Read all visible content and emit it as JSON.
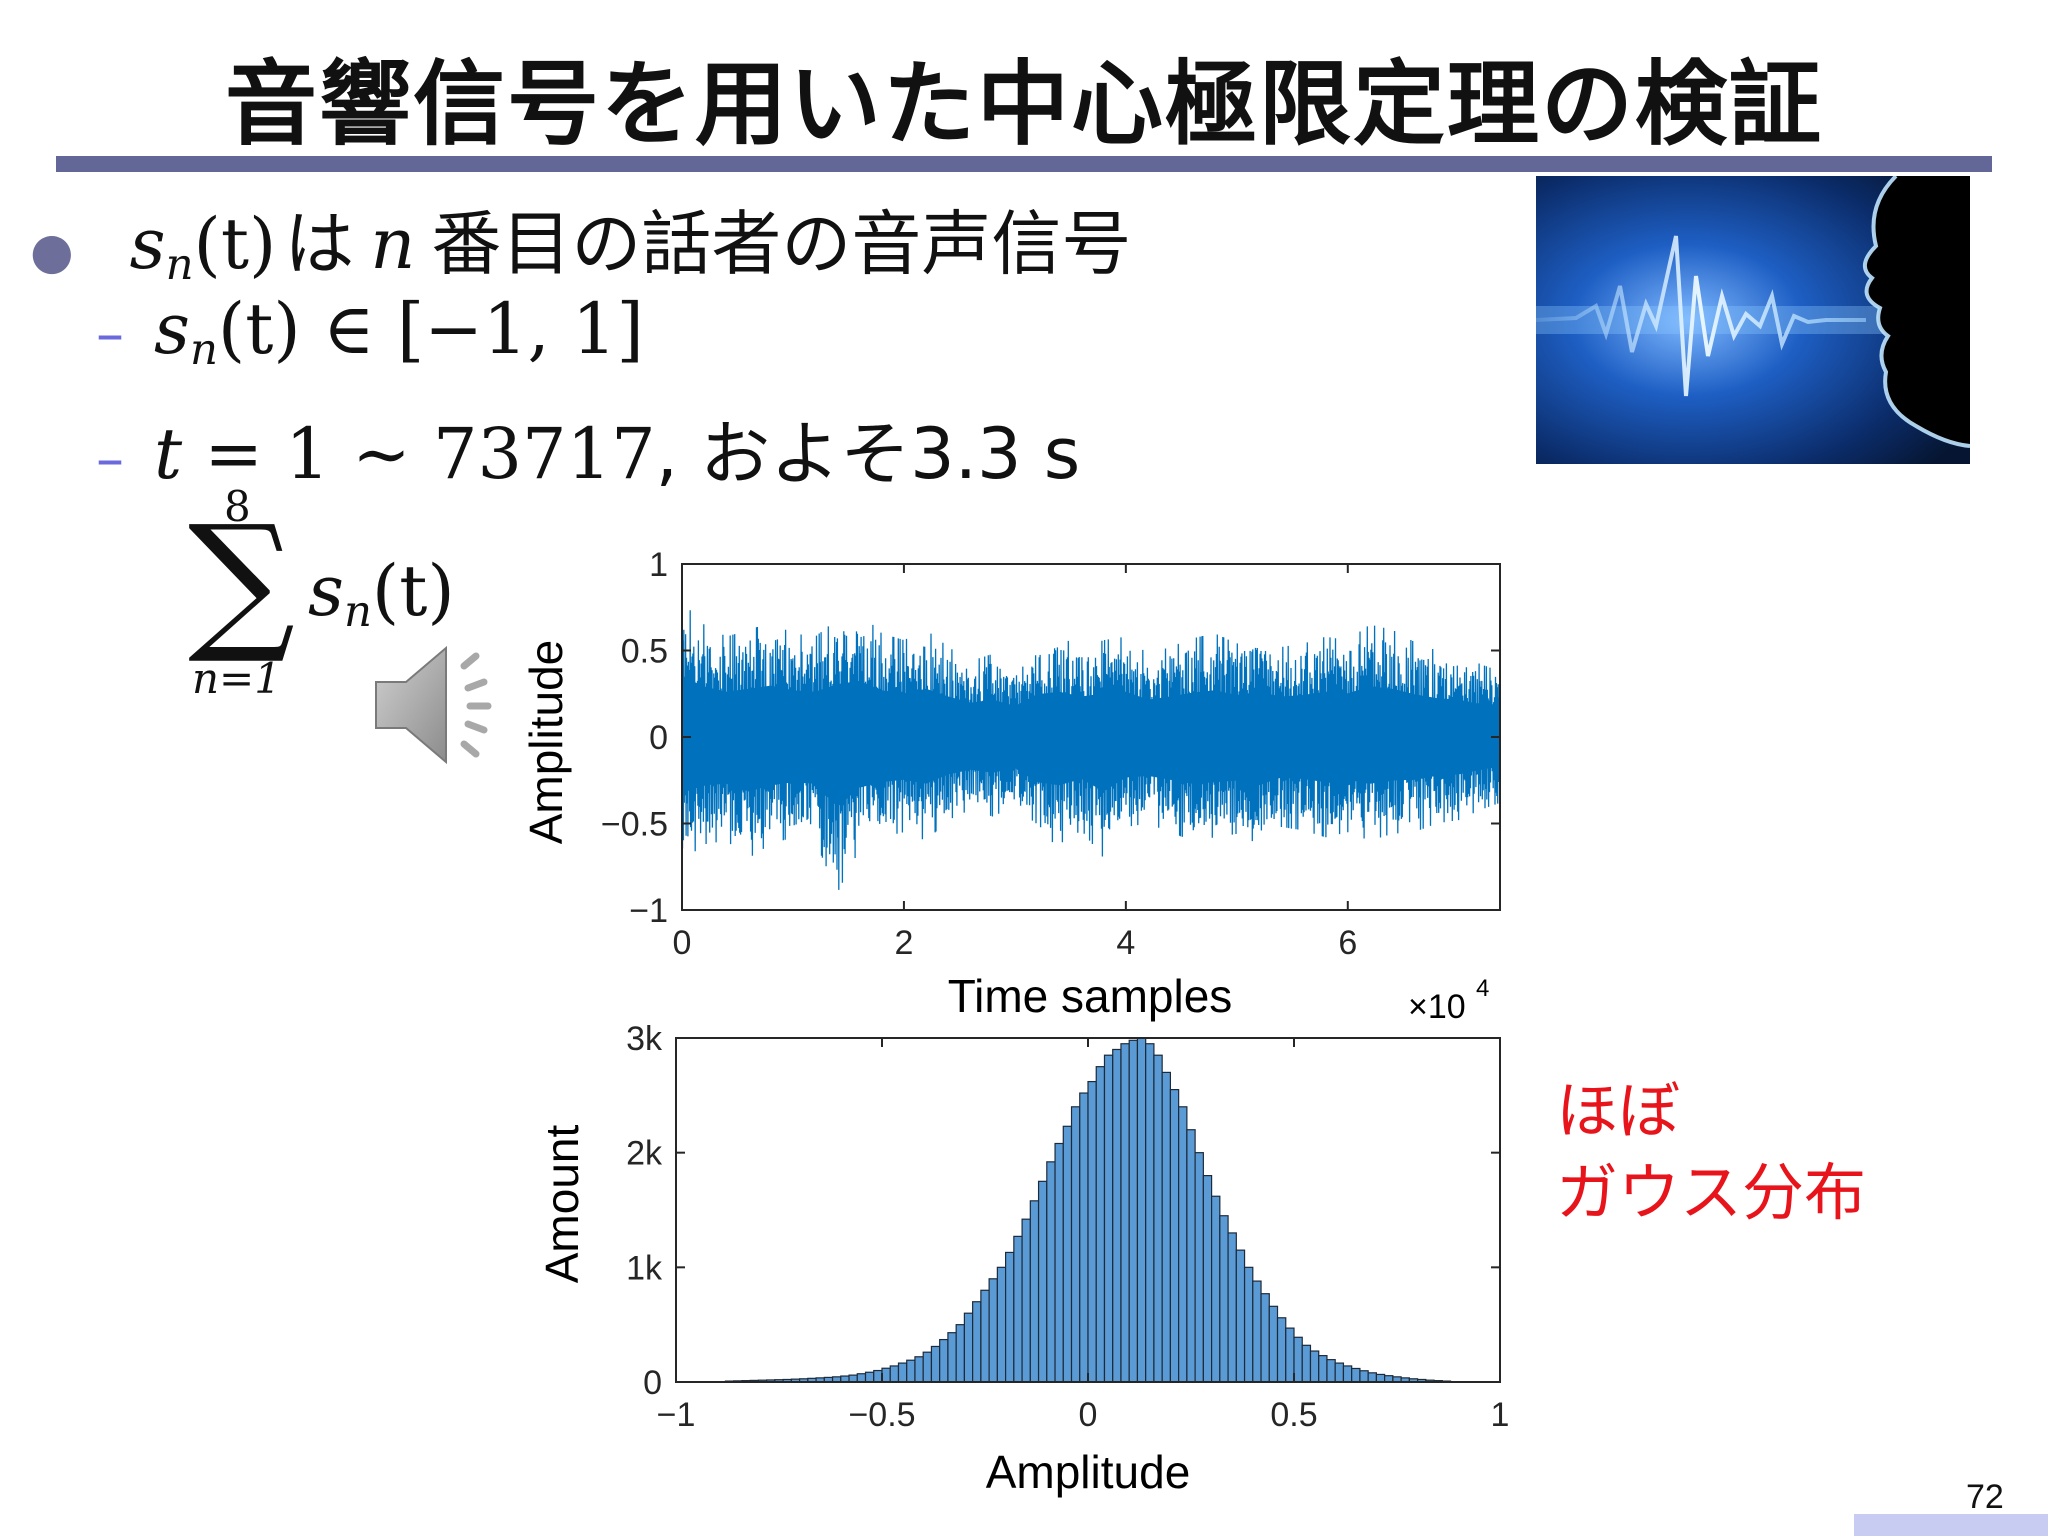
{
  "slide": {
    "title": "音響信号を用いた中心極限定理の検証",
    "page_number": "72",
    "accent_color": "#626797"
  },
  "bullets": {
    "main": {
      "sym": "s",
      "sub": "n",
      "arg": "(t)",
      "text1": "は",
      "var": "n",
      "text2": "番目の話者の音声信号"
    },
    "sub1": {
      "sym": "s",
      "sub": "n",
      "rest": "(t) ∈ [−1, 1]"
    },
    "sub2": {
      "var": "t",
      "rest": " = 1 ∼ 73717",
      "text": ", およそ3.3 s"
    }
  },
  "summation": {
    "upper": "8",
    "lower": "n=1",
    "sym": "s",
    "sub": "n",
    "arg": "(t)"
  },
  "icons": {
    "speaker": "speaker-icon",
    "photo": "voice-waveform-photo"
  },
  "note": {
    "line1": "ほぼ",
    "line2": "ガウス分布",
    "color": "#E8141B"
  },
  "chart_data": [
    {
      "type": "line",
      "title": "",
      "xlabel": "Time samples",
      "ylabel": "Amplitude",
      "xlim": [
        0,
        73717
      ],
      "ylim": [
        -1,
        1
      ],
      "xticks": [
        "0",
        "2",
        "4",
        "6"
      ],
      "x_multiplier": "×10",
      "x_multiplier_exp": "4",
      "yticks": [
        "1",
        "0.5",
        "0",
        "−0.5",
        "−1"
      ],
      "color": "#0072BD",
      "series": [
        {
          "x": [
            0,
            2000,
            4000,
            6000,
            8000,
            10000,
            12000,
            14000,
            16000,
            18000,
            20000,
            22000,
            24000,
            26000,
            28000,
            30000,
            32000,
            34000,
            36000,
            38000,
            40000,
            42000,
            44000,
            46000,
            48000,
            50000,
            52000,
            54000,
            56000,
            58000,
            60000,
            62000,
            64000,
            66000,
            68000,
            70000,
            72000,
            73717
          ],
          "upper": [
            0.78,
            0.65,
            0.58,
            0.62,
            0.66,
            0.6,
            0.58,
            0.68,
            0.72,
            0.6,
            0.56,
            0.62,
            0.52,
            0.44,
            0.48,
            0.4,
            0.55,
            0.58,
            0.52,
            0.56,
            0.58,
            0.48,
            0.52,
            0.57,
            0.6,
            0.54,
            0.58,
            0.52,
            0.54,
            0.58,
            0.56,
            0.65,
            0.62,
            0.55,
            0.5,
            0.48,
            0.42,
            0.38
          ],
          "lower": [
            -0.72,
            -0.62,
            -0.6,
            -0.7,
            -0.62,
            -0.58,
            -0.6,
            -0.9,
            -0.65,
            -0.58,
            -0.55,
            -0.6,
            -0.48,
            -0.42,
            -0.46,
            -0.4,
            -0.58,
            -0.62,
            -0.54,
            -0.7,
            -0.52,
            -0.5,
            -0.55,
            -0.6,
            -0.58,
            -0.56,
            -0.62,
            -0.52,
            -0.54,
            -0.58,
            -0.55,
            -0.6,
            -0.56,
            -0.55,
            -0.5,
            -0.48,
            -0.42,
            -0.38
          ]
        }
      ]
    },
    {
      "type": "bar",
      "title": "",
      "xlabel": "Amplitude",
      "ylabel": "Amount",
      "xlim": [
        -1,
        1
      ],
      "ylim": [
        0,
        3000
      ],
      "xticks": [
        "−1",
        "−0.5",
        "0",
        "0.5",
        "1"
      ],
      "yticks": [
        "3k",
        "2k",
        "1k",
        "0"
      ],
      "color": "#5B9BD5",
      "bin_width": 0.02,
      "bins_start": -0.88,
      "values": [
        8,
        10,
        12,
        14,
        16,
        18,
        20,
        22,
        25,
        28,
        32,
        36,
        40,
        45,
        52,
        60,
        72,
        85,
        100,
        120,
        140,
        165,
        190,
        220,
        260,
        310,
        370,
        430,
        500,
        600,
        700,
        800,
        900,
        1000,
        1130,
        1270,
        1420,
        1580,
        1750,
        1920,
        2080,
        2230,
        2400,
        2520,
        2620,
        2750,
        2850,
        2900,
        2950,
        2980,
        3000,
        2950,
        2850,
        2700,
        2550,
        2400,
        2200,
        2000,
        1800,
        1620,
        1450,
        1300,
        1150,
        1000,
        880,
        770,
        660,
        560,
        470,
        390,
        320,
        270,
        230,
        195,
        165,
        140,
        118,
        98,
        80,
        66,
        55,
        45,
        36,
        28,
        22,
        16,
        12,
        8
      ]
    }
  ]
}
